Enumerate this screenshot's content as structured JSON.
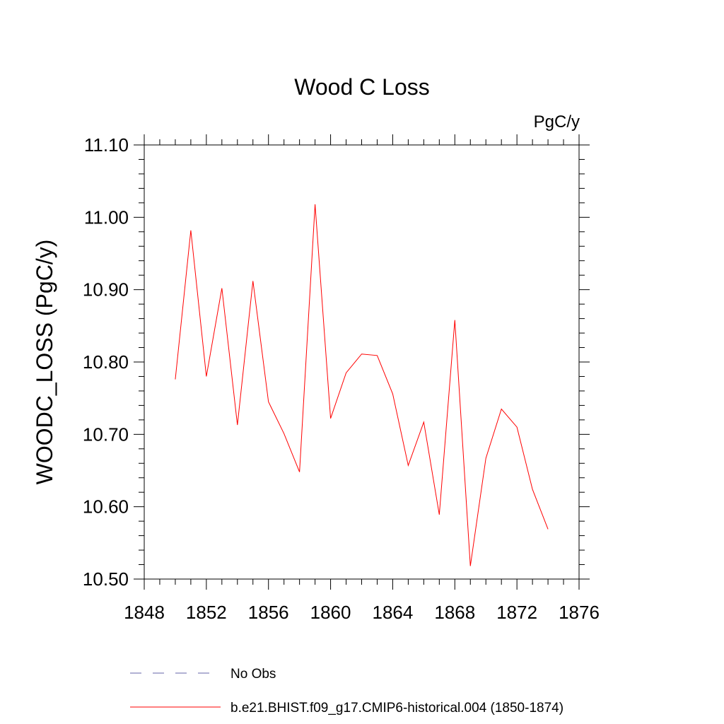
{
  "chart_data": {
    "type": "line",
    "title": "Wood C Loss",
    "units_label": "PgC/y",
    "xlabel": "",
    "ylabel": "WOODC_LOSS  (PgC/y)",
    "xlim": [
      1848,
      1876
    ],
    "ylim": [
      10.5,
      11.1
    ],
    "x_ticks": [
      1848,
      1852,
      1856,
      1860,
      1864,
      1868,
      1872,
      1876
    ],
    "x_tick_labels": [
      "1848",
      "1852",
      "1856",
      "1860",
      "1864",
      "1868",
      "1872",
      "1876"
    ],
    "y_ticks": [
      10.5,
      10.6,
      10.7,
      10.8,
      10.9,
      11.0,
      11.1
    ],
    "y_tick_labels": [
      "10.50",
      "10.60",
      "10.70",
      "10.80",
      "10.90",
      "11.00",
      "11.10"
    ],
    "grid": false,
    "series": [
      {
        "name": "b.e21.BHIST.f09_g17.CMIP6-historical.004 (1850-1874)",
        "color": "#ff0000",
        "style": "solid",
        "x": [
          1850,
          1851,
          1852,
          1853,
          1854,
          1855,
          1856,
          1857,
          1858,
          1859,
          1860,
          1861,
          1862,
          1863,
          1864,
          1865,
          1866,
          1867,
          1868,
          1869,
          1870,
          1871,
          1872,
          1873,
          1874
        ],
        "y": [
          10.776,
          10.982,
          10.78,
          10.902,
          10.713,
          10.912,
          10.745,
          10.701,
          10.648,
          11.018,
          10.722,
          10.785,
          10.811,
          10.809,
          10.756,
          10.657,
          10.717,
          10.589,
          10.858,
          10.518,
          10.667,
          10.735,
          10.71,
          10.624,
          10.569
        ]
      }
    ],
    "legend": {
      "placement": "bottom",
      "entries": [
        {
          "label": "No Obs",
          "color": "#6666aa",
          "style": "dashed"
        },
        {
          "label": "b.e21.BHIST.f09_g17.CMIP6-historical.004 (1850-1874)",
          "color": "#ff0000",
          "style": "solid"
        }
      ]
    }
  }
}
